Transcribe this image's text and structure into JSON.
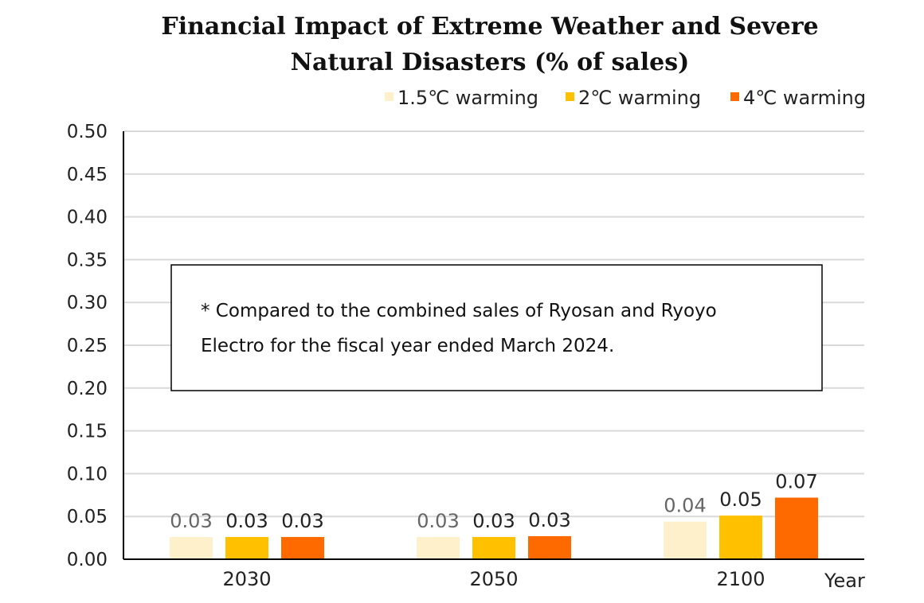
{
  "chart_data": {
    "type": "bar",
    "title_lines": [
      "Financial Impact of Extreme Weather and Severe",
      "Natural Disasters (% of sales)"
    ],
    "xlabel": "Year",
    "ylabel": "",
    "categories": [
      "2030",
      "2050",
      "2100"
    ],
    "series": [
      {
        "name": "1.5℃ warming",
        "values": [
          0.026,
          0.026,
          0.044
        ],
        "labels": [
          "0.03",
          "0.03",
          "0.04"
        ],
        "color": "#FFF0CC",
        "label_color": "#666666"
      },
      {
        "name": "2℃ warming",
        "values": [
          0.026,
          0.026,
          0.051
        ],
        "labels": [
          "0.03",
          "0.03",
          "0.05"
        ],
        "color": "#FFC000",
        "label_color": "#222222"
      },
      {
        "name": "4℃ warming",
        "values": [
          0.026,
          0.027,
          0.072
        ],
        "labels": [
          "0.03",
          "0.03",
          "0.07"
        ],
        "color": "#FF6A00",
        "label_color": "#222222"
      }
    ],
    "ylim": [
      0,
      0.5
    ],
    "yticks": [
      "0.00",
      "0.05",
      "0.10",
      "0.15",
      "0.20",
      "0.25",
      "0.30",
      "0.35",
      "0.40",
      "0.45",
      "0.50"
    ],
    "grid": true,
    "legend_position": "top-right",
    "annotation_lines": [
      "* Compared to the combined sales of Ryosan and Ryoyo",
      "Electro for the fiscal year ended March 2024."
    ]
  }
}
